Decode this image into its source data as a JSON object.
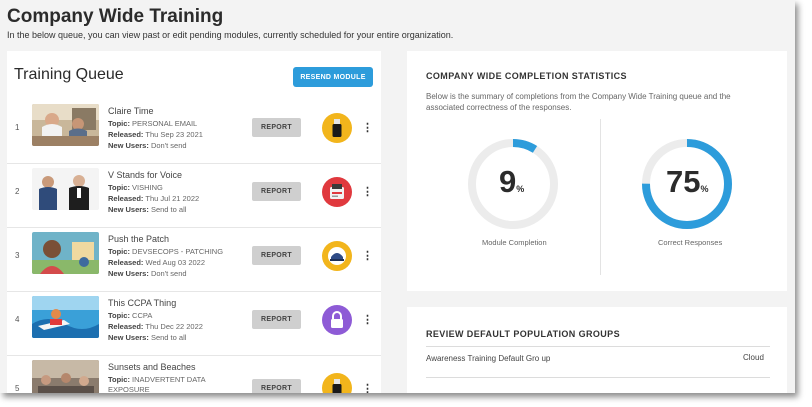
{
  "page": {
    "title": "Company Wide Training",
    "subtitle": "In the below queue, you can view past or edit pending modules, currently scheduled for your entire organization."
  },
  "queue": {
    "title": "Training Queue",
    "resend_label": "RESEND MODULE",
    "report_label": "REPORT",
    "topic_label": "Topic:",
    "released_label": "Released:",
    "new_users_label": "New Users:",
    "items": [
      {
        "num": "1",
        "title": "Claire Time",
        "topic": "PERSONAL EMAIL",
        "released": "Thu Sep 23 2021",
        "new_users": "Don't send",
        "icon": "usb-drive-icon",
        "icon_color": "#f2b51c"
      },
      {
        "num": "2",
        "title": "V Stands for Voice",
        "topic": "VISHING",
        "released": "Thu Jul 21 2022",
        "new_users": "Send to all",
        "icon": "payment-terminal-icon",
        "icon_color": "#e0393e"
      },
      {
        "num": "3",
        "title": "Push the Patch",
        "topic": "DEVSECOPS - PATCHING",
        "released": "Wed Aug 03 2022",
        "new_users": "Don't send",
        "icon": "shield-cap-icon",
        "icon_color": "#f2b51c"
      },
      {
        "num": "4",
        "title": "This CCPA Thing",
        "topic": "CCPA",
        "released": "Thu Dec 22 2022",
        "new_users": "Send to all",
        "icon": "lock-icon",
        "icon_color": "#8e5bd6"
      },
      {
        "num": "5",
        "title": "Sunsets and Beaches",
        "topic": "INADVERTENT DATA",
        "topic_line2": "EXPOSURE",
        "icon": "usb-drive-icon",
        "icon_color": "#f2b51c"
      }
    ]
  },
  "stats": {
    "title": "COMPANY WIDE COMPLETION STATISTICS",
    "description": "Below is the summary of completions from the Company Wide Training queue and the associated correctness of the responses.",
    "accent": "#2d9cdb",
    "gauges": [
      {
        "value": 9,
        "unit": "%",
        "label": "Module Completion"
      },
      {
        "value": 75,
        "unit": "%",
        "label": "Correct Responses"
      }
    ]
  },
  "groups": {
    "title": "REVIEW DEFAULT POPULATION GROUPS",
    "items": [
      {
        "name": "Awareness Training Default Gro up",
        "type": "Cloud"
      }
    ]
  }
}
